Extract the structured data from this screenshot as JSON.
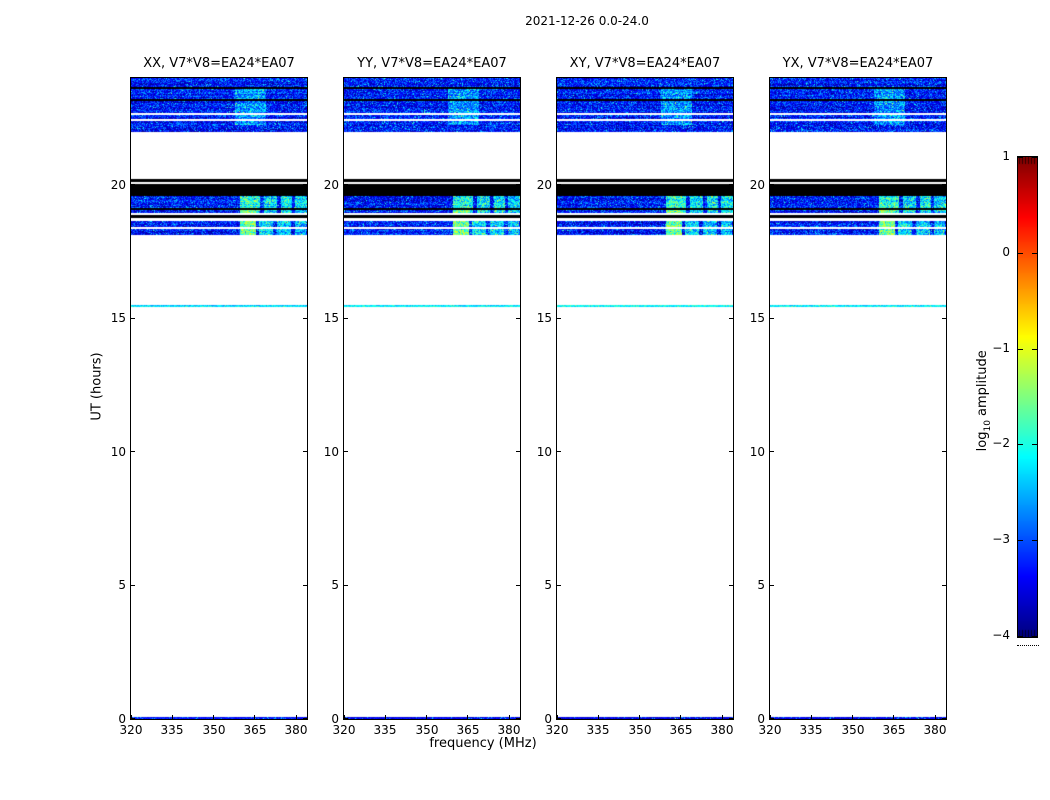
{
  "figure": {
    "suptitle": "2021-12-26 0.0-24.0"
  },
  "chart_data": {
    "type": "heatmap",
    "title": "2021-12-26 0.0-24.0",
    "xlabel": "frequency (MHz)",
    "ylabel": "UT (hours)",
    "xlim": [
      320,
      384
    ],
    "ylim": [
      0,
      24
    ],
    "xtick_values": [
      320,
      335,
      350,
      365,
      380
    ],
    "xtick_labels": [
      "320",
      "335",
      "350",
      "365",
      "380"
    ],
    "ytick_values": [
      0,
      5,
      10,
      15,
      20
    ],
    "ytick_labels": [
      "0",
      "5",
      "10",
      "15",
      "20"
    ],
    "background": "#ffffff",
    "spine_color": "#000000",
    "panels": [
      {
        "id": "xx",
        "label": "XX, V7*V8=EA24*EA07"
      },
      {
        "id": "yy",
        "label": "YY, V7*V8=EA24*EA07"
      },
      {
        "id": "xy",
        "label": "XY, V7*V8=EA24*EA07"
      },
      {
        "id": "yx",
        "label": "YX, V7*V8=EA24*EA07"
      }
    ],
    "colorbar": {
      "label_prefix": "log",
      "label_sub": "10",
      "label_suffix": " amplitude",
      "tick_values": [
        1,
        0,
        -1,
        -2,
        -3,
        -4
      ],
      "tick_labels": [
        "1",
        "0",
        "−1",
        "−2",
        "−3",
        "−4"
      ],
      "vmin": -4,
      "vmax": 1,
      "colormap": "jet"
    },
    "noise": {
      "base": -3.78,
      "spread": 1.15,
      "speckle_prob": 0.05,
      "speckle_boost": 0.85,
      "row_jitter": 0.2,
      "vcap": -1.1
    },
    "bands": [
      {
        "name": "scan-22.0-24.0",
        "kind": "noise",
        "t0": 21.98,
        "t1": 24.0,
        "features": [
          {
            "f0": 358,
            "f1": 369,
            "t0": 22.25,
            "t1": 23.6,
            "boost": 0.85
          }
        ]
      },
      {
        "name": "flagged-black-19.6-20.2",
        "kind": "solid",
        "t0": 19.58,
        "t1": 20.22,
        "color": "#000000"
      },
      {
        "name": "scan-18.9-19.6",
        "kind": "noise",
        "t0": 18.93,
        "t1": 19.58,
        "features": [
          {
            "f0": 359.5,
            "f1": 367.0,
            "boost": 1.7
          },
          {
            "f0": 368.5,
            "f1": 373.0,
            "boost": 1.4
          },
          {
            "f0": 374.5,
            "f1": 378.5,
            "boost": 1.45
          },
          {
            "f0": 379.5,
            "f1": 384.0,
            "boost": 1.35
          },
          {
            "f0": 359.5,
            "f1": 365.5,
            "t0": 18.93,
            "t1": 19.15,
            "boost": 0.6
          }
        ]
      },
      {
        "name": "flagged-black-18.75-18.87",
        "kind": "solid",
        "t0": 18.74,
        "t1": 18.87,
        "color": "#000000"
      },
      {
        "name": "scan-18.1-18.7",
        "kind": "noise",
        "t0": 18.12,
        "t1": 18.66,
        "features": [
          {
            "f0": 359.5,
            "f1": 365.5,
            "boost": 2.3
          },
          {
            "f0": 366.5,
            "f1": 371.5,
            "boost": 1.35
          },
          {
            "f0": 373.0,
            "f1": 378.0,
            "boost": 1.2
          },
          {
            "f0": 379.5,
            "f1": 383.5,
            "boost": 1.15
          }
        ]
      },
      {
        "name": "scan-15.5",
        "kind": "noise",
        "t0": 15.43,
        "t1": 15.51,
        "base": -2.5,
        "spread": 0.6,
        "speckle_prob": 0.1,
        "speckle_boost": 0.4,
        "features": []
      },
      {
        "name": "scan-0.0",
        "kind": "noise",
        "t0": 0.0,
        "t1": 0.09,
        "base": -3.55,
        "spread": 0.45,
        "features": [
          {
            "f0": 362,
            "f1": 379,
            "boost": 1.1,
            "sparse": 0.18
          }
        ]
      }
    ],
    "hlines": [
      {
        "t": 23.63,
        "px": 2,
        "color": "#000000"
      },
      {
        "t": 23.18,
        "px": 2,
        "color": "#000000"
      },
      {
        "t": 22.67,
        "px": 2,
        "color": "#ffffff"
      },
      {
        "t": 22.43,
        "px": 2,
        "color": "#ffffff"
      },
      {
        "t": 20.07,
        "px": 1.5,
        "color": "#ffffff"
      },
      {
        "t": 19.08,
        "px": 2,
        "color": "#000000"
      },
      {
        "t": 18.38,
        "px": 2,
        "color": "#ffffff"
      }
    ]
  }
}
